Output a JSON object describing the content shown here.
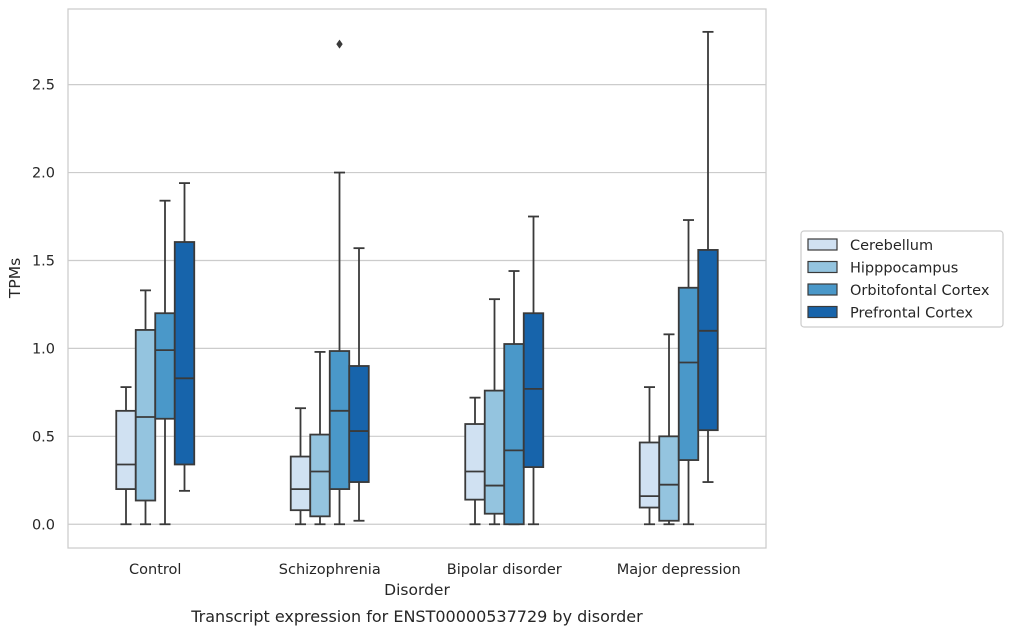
{
  "chart_data": {
    "type": "box",
    "title": "",
    "caption": "Transcript expression for ENST00000537729 by disorder",
    "xlabel": "Disorder",
    "ylabel": "TPMs",
    "ylim": [
      -0.135,
      2.93
    ],
    "yticks": [
      0.0,
      0.5,
      1.0,
      1.5,
      2.0,
      2.5
    ],
    "ytick_labels": [
      "0.0",
      "0.5",
      "1.0",
      "1.5",
      "2.0",
      "2.5"
    ],
    "grid": "horizontal",
    "legend_position": "right",
    "categories": [
      "Control",
      "Schizophrenia",
      "Bipolar disorder",
      "Major depression"
    ],
    "series": [
      {
        "name": "Cerebellum",
        "color": "#d0e1f2",
        "boxes": [
          {
            "whislo": 0.0,
            "q1": 0.2,
            "median": 0.34,
            "q3": 0.645,
            "whishi": 0.78,
            "fliers": []
          },
          {
            "whislo": 0.0,
            "q1": 0.08,
            "median": 0.2,
            "q3": 0.385,
            "whishi": 0.66,
            "fliers": []
          },
          {
            "whislo": 0.0,
            "q1": 0.14,
            "median": 0.3,
            "q3": 0.57,
            "whishi": 0.72,
            "fliers": []
          },
          {
            "whislo": 0.0,
            "q1": 0.095,
            "median": 0.16,
            "q3": 0.465,
            "whishi": 0.78,
            "fliers": []
          }
        ]
      },
      {
        "name": "Hipppocampus",
        "color": "#94c4df",
        "boxes": [
          {
            "whislo": 0.0,
            "q1": 0.135,
            "median": 0.61,
            "q3": 1.105,
            "whishi": 1.33,
            "fliers": []
          },
          {
            "whislo": 0.0,
            "q1": 0.045,
            "median": 0.3,
            "q3": 0.51,
            "whishi": 0.98,
            "fliers": []
          },
          {
            "whislo": 0.0,
            "q1": 0.06,
            "median": 0.22,
            "q3": 0.76,
            "whishi": 1.28,
            "fliers": []
          },
          {
            "whislo": 0.0,
            "q1": 0.02,
            "median": 0.225,
            "q3": 0.5,
            "whishi": 1.08,
            "fliers": []
          }
        ]
      },
      {
        "name": "Orbitofontal Cortex",
        "color": "#4a98c9",
        "boxes": [
          {
            "whislo": 0.0,
            "q1": 0.6,
            "median": 0.99,
            "q3": 1.2,
            "whishi": 1.84,
            "fliers": []
          },
          {
            "whislo": 0.0,
            "q1": 0.2,
            "median": 0.645,
            "q3": 0.985,
            "whishi": 2.0,
            "fliers": [
              2.73
            ]
          },
          {
            "whislo": 0.0,
            "q1": 0.0,
            "median": 0.42,
            "q3": 1.025,
            "whishi": 1.44,
            "fliers": []
          },
          {
            "whislo": 0.0,
            "q1": 0.365,
            "median": 0.92,
            "q3": 1.345,
            "whishi": 1.73,
            "fliers": []
          }
        ]
      },
      {
        "name": "Prefrontal Cortex",
        "color": "#1764ab",
        "boxes": [
          {
            "whislo": 0.19,
            "q1": 0.34,
            "median": 0.83,
            "q3": 1.605,
            "whishi": 1.94,
            "fliers": []
          },
          {
            "whislo": 0.02,
            "q1": 0.24,
            "median": 0.53,
            "q3": 0.9,
            "whishi": 1.57,
            "fliers": []
          },
          {
            "whislo": 0.0,
            "q1": 0.325,
            "median": 0.77,
            "q3": 1.2,
            "whishi": 1.75,
            "fliers": []
          },
          {
            "whislo": 0.24,
            "q1": 0.535,
            "median": 1.1,
            "q3": 1.56,
            "whishi": 2.8,
            "fliers": []
          }
        ]
      }
    ]
  },
  "colors": {
    "edge": "#3a3a3a",
    "grid": "#cccccc",
    "frame": "#cccccc"
  }
}
